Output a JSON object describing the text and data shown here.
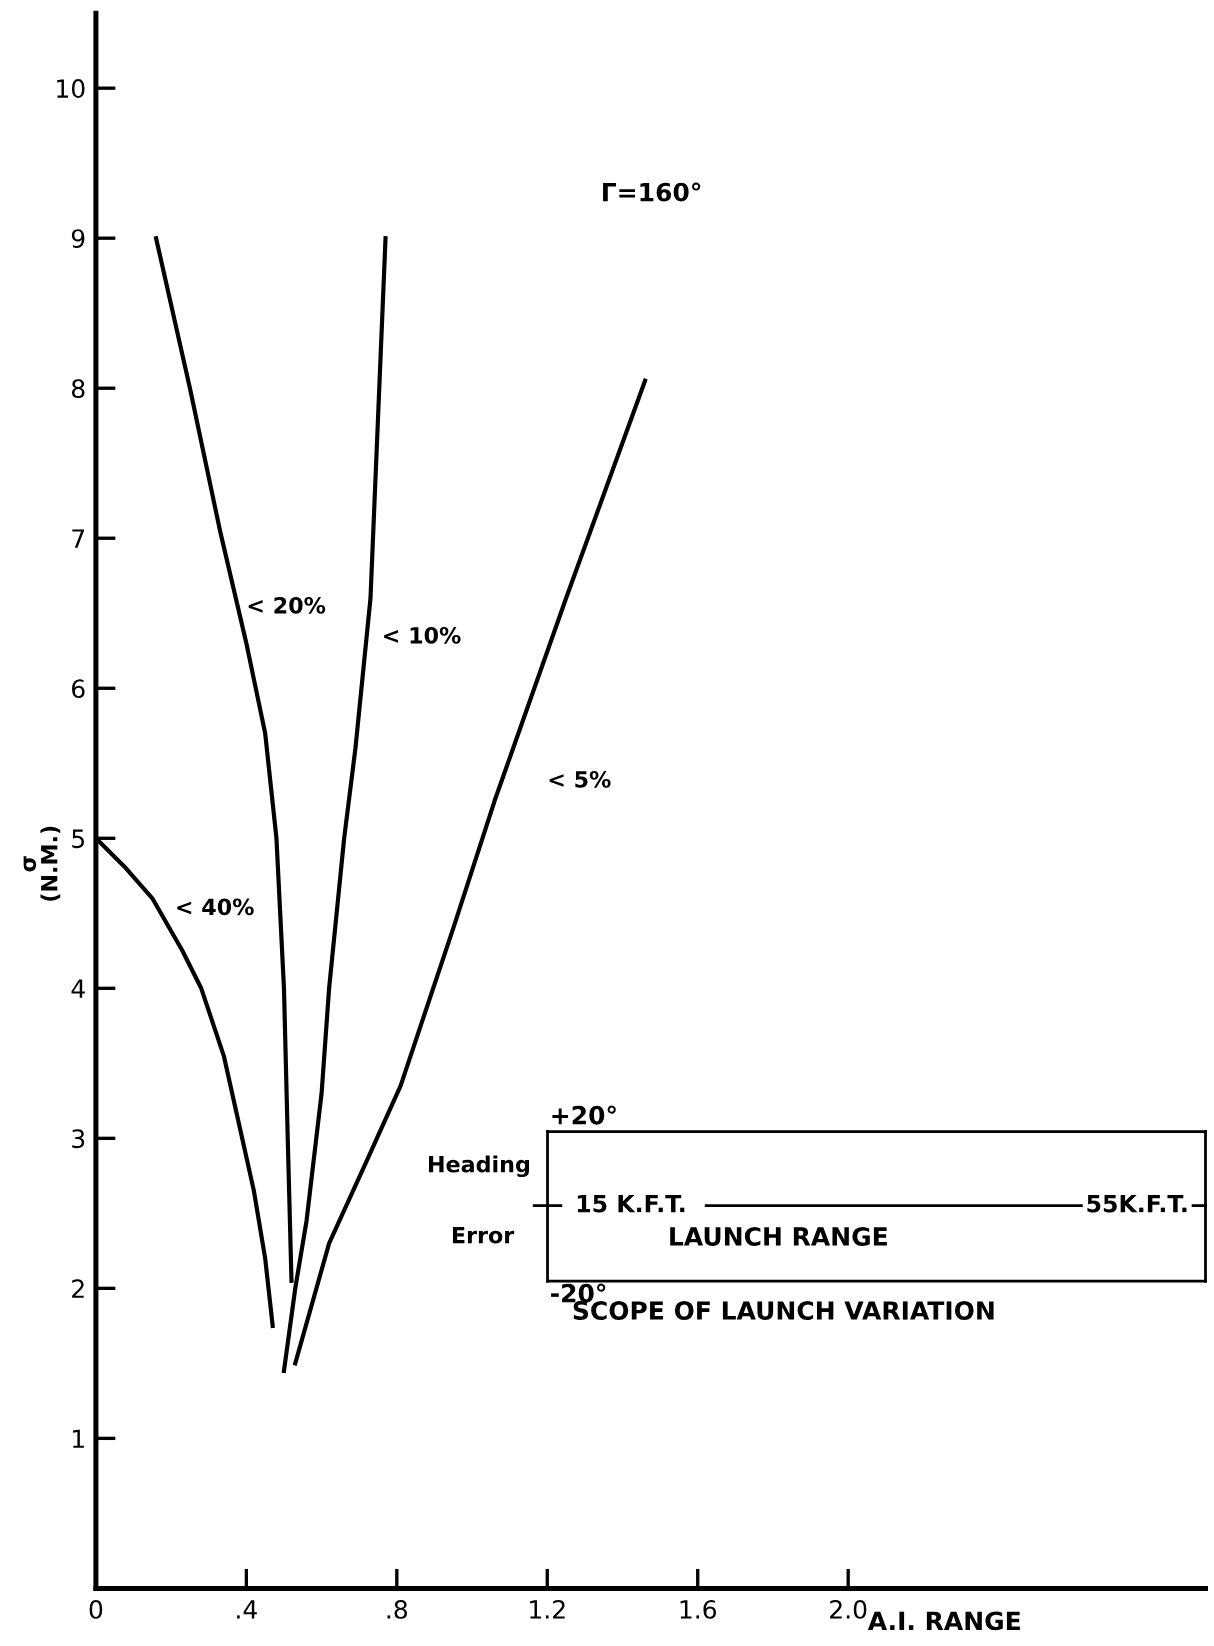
{
  "chart_data": {
    "type": "line",
    "xlabel": "A.I. RANGE",
    "ylabel": "σ\n(N.M.)",
    "xlim": [
      0,
      2.95
    ],
    "ylim": [
      0,
      10.5
    ],
    "xticks": [
      {
        "value": 0,
        "label": "0"
      },
      {
        "value": 0.4,
        "label": ".4"
      },
      {
        "value": 0.8,
        "label": ".8"
      },
      {
        "value": 1.2,
        "label": "1.2"
      },
      {
        "value": 1.6,
        "label": "1.6"
      },
      {
        "value": 2.0,
        "label": "2.0"
      }
    ],
    "yticks": [
      1,
      2,
      3,
      4,
      5,
      6,
      7,
      8,
      9,
      10
    ],
    "grid": false,
    "legend": false,
    "marker": "none",
    "line_style": "solid",
    "series": [
      {
        "name": "< 40%",
        "color": "#000000",
        "x": [
          0,
          0.08,
          0.15,
          0.23,
          0.28,
          0.34,
          0.38,
          0.42,
          0.45,
          0.47
        ],
        "values": [
          5.0,
          4.8,
          4.6,
          4.25,
          4.0,
          3.55,
          3.1,
          2.65,
          2.2,
          1.75
        ]
      },
      {
        "name": "< 20%",
        "color": "#000000",
        "x": [
          0.16,
          0.25,
          0.33,
          0.4,
          0.45,
          0.48,
          0.5,
          0.51,
          0.52
        ],
        "values": [
          9.0,
          8.0,
          7.05,
          6.3,
          5.7,
          5.0,
          4.0,
          3.0,
          2.05
        ]
      },
      {
        "name": "< 10%",
        "color": "#000000",
        "x": [
          0.5,
          0.53,
          0.56,
          0.6,
          0.62,
          0.66,
          0.69,
          0.73,
          0.75,
          0.77
        ],
        "values": [
          1.45,
          2.0,
          2.45,
          3.3,
          4.0,
          5.0,
          5.6,
          6.6,
          7.8,
          9.0
        ]
      },
      {
        "name": "< 5%",
        "color": "#000000",
        "x": [
          0.53,
          0.62,
          0.72,
          0.81,
          0.95,
          1.06,
          1.25,
          1.46
        ],
        "values": [
          1.5,
          2.3,
          2.85,
          3.35,
          4.4,
          5.25,
          6.6,
          8.05
        ]
      }
    ],
    "annotations": [
      "Γ=160°",
      "+20°",
      "Heading",
      "Error",
      "15 K.F.T.",
      "55K.F.T.",
      "LAUNCH RANGE",
      "-20°",
      "SCOPE OF LAUNCH VARIATION"
    ]
  }
}
